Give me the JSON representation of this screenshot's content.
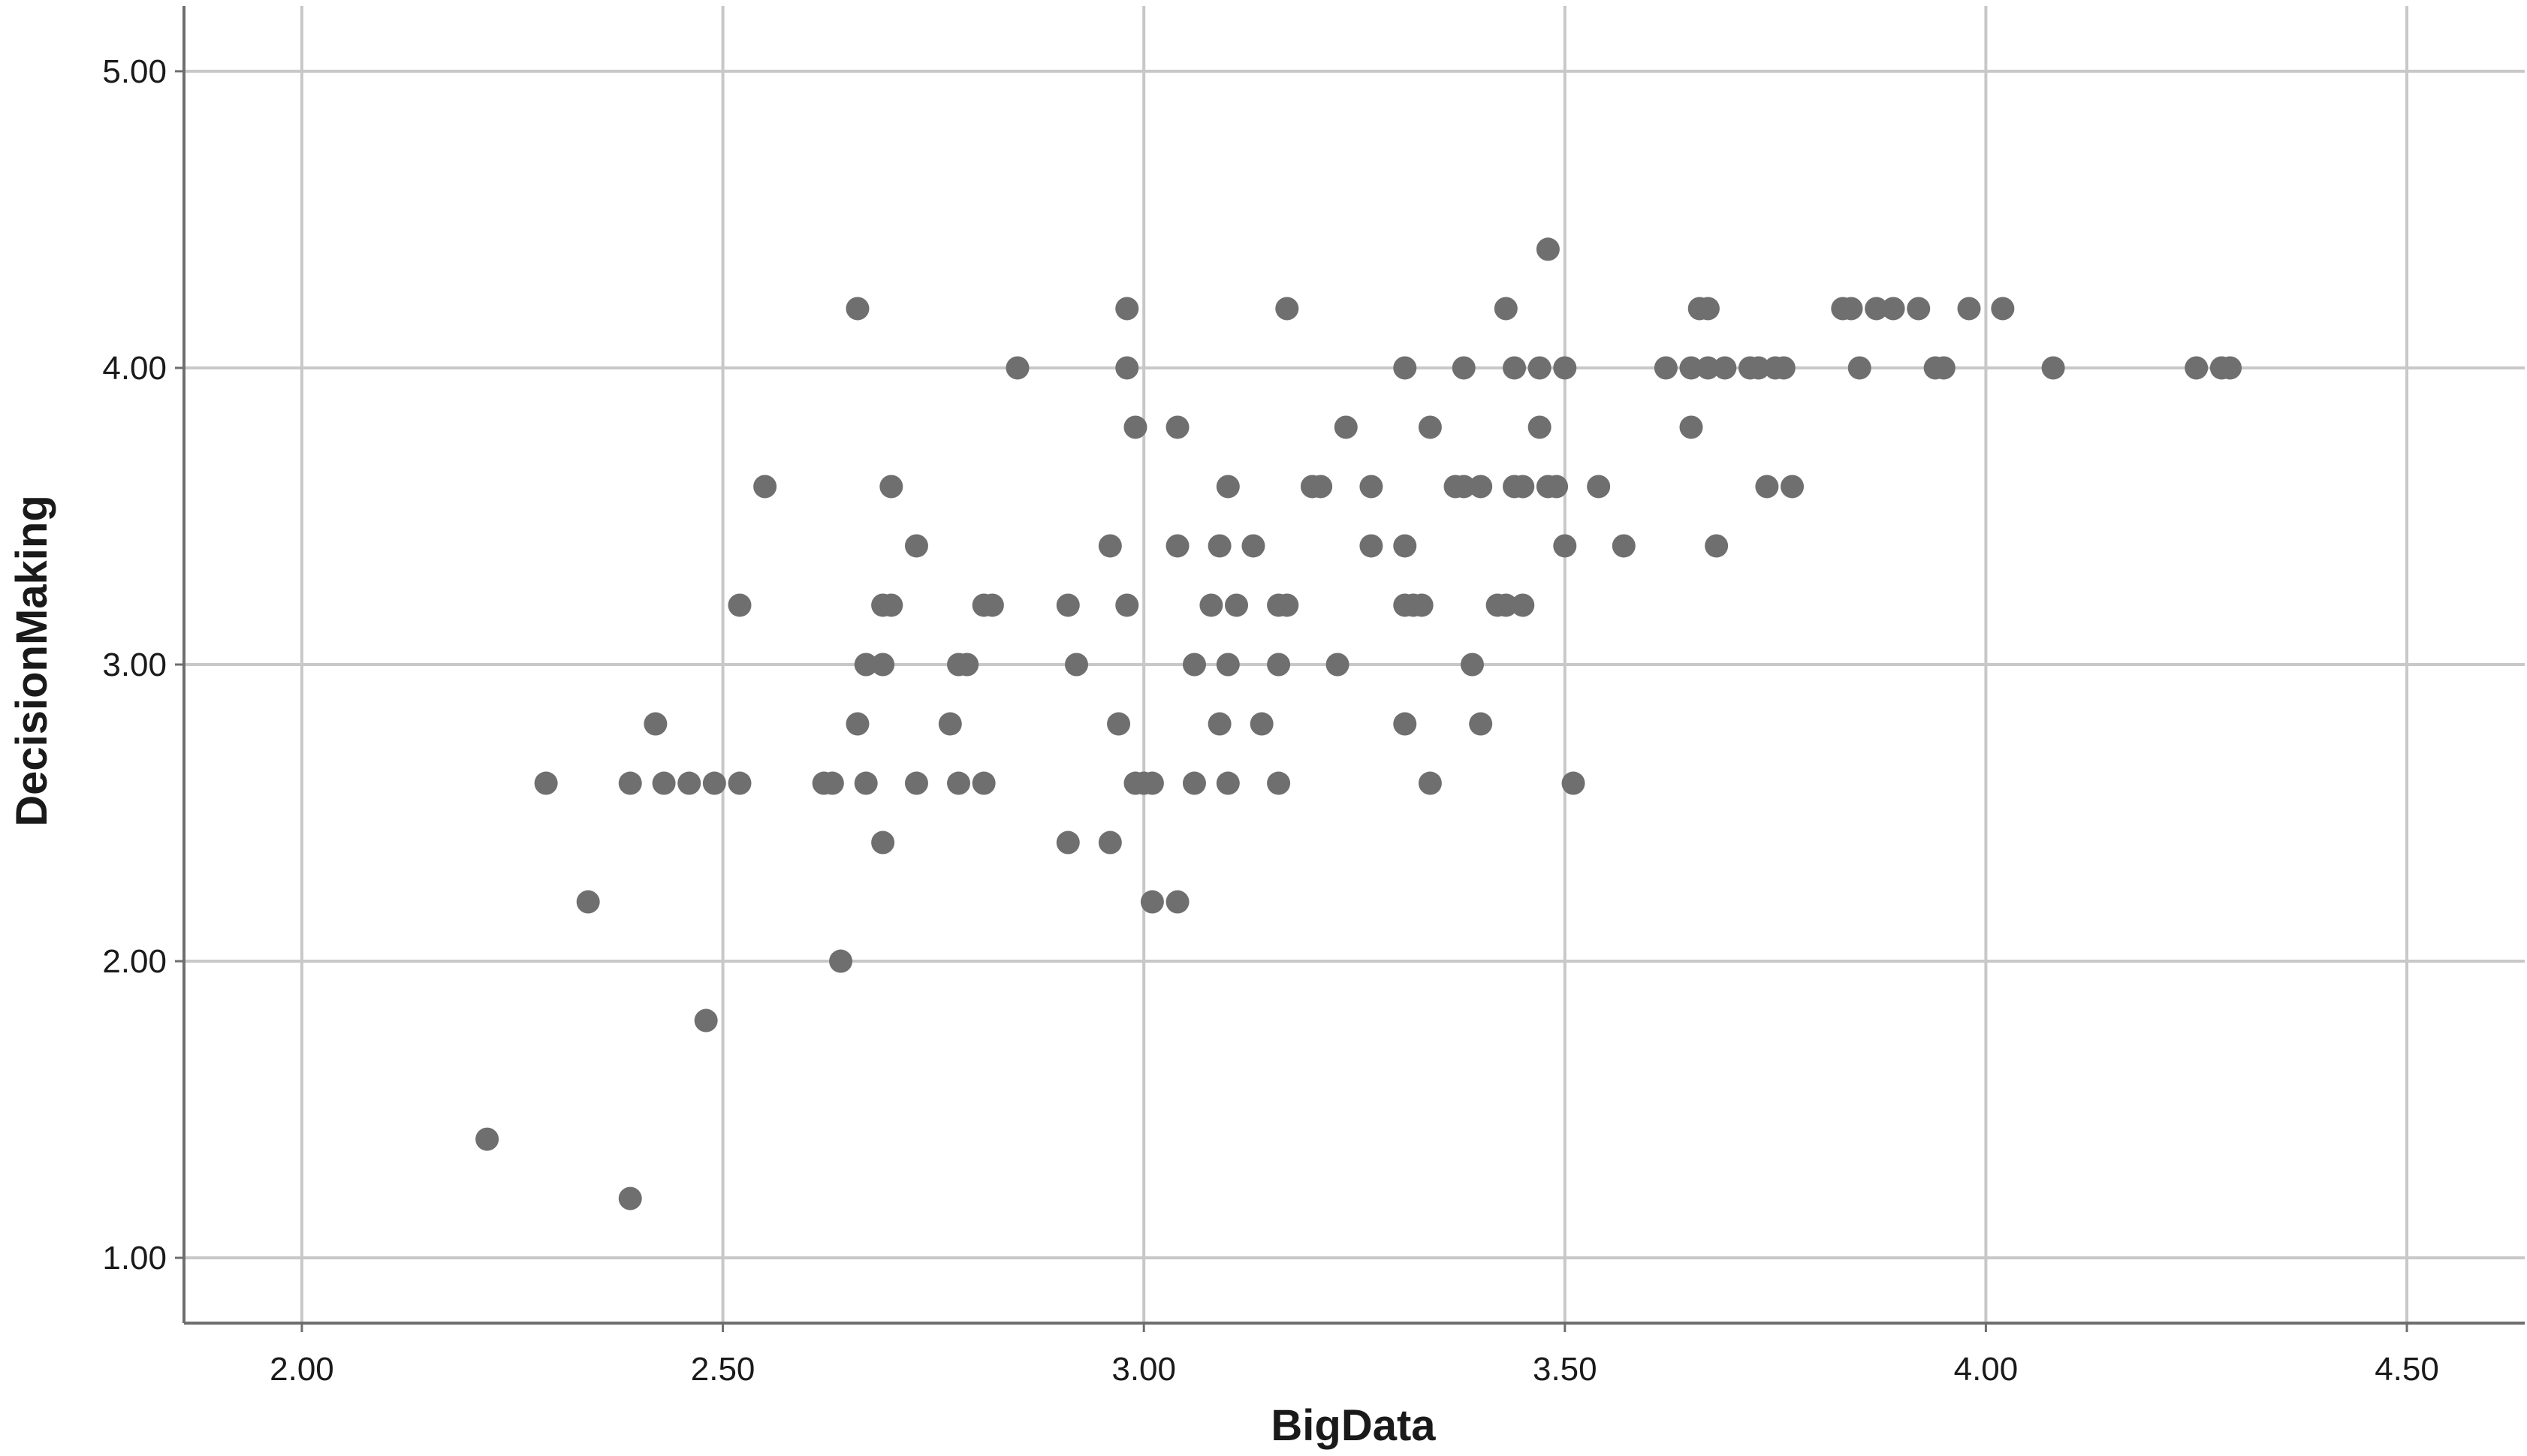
{
  "colors": {
    "background": "#ffffff",
    "grid": "#c8c8c8",
    "axis": "#6e6e6e",
    "points": "#6f6f6f",
    "text": "#1a1a1a"
  },
  "chart_data": {
    "type": "scatter",
    "title": "",
    "xlabel": "BigData",
    "ylabel": "DecisionMaking",
    "xlim": [
      1.86,
      4.64
    ],
    "ylim": [
      0.78,
      5.22
    ],
    "xticks": [
      2.0,
      2.5,
      3.0,
      3.5,
      4.0,
      4.5
    ],
    "xtick_labels": [
      "2.00",
      "2.50",
      "3.00",
      "3.50",
      "4.00",
      "4.50"
    ],
    "yticks": [
      1.0,
      2.0,
      3.0,
      4.0,
      5.0
    ],
    "ytick_labels": [
      "1.00",
      "2.00",
      "3.00",
      "4.00",
      "5.00"
    ],
    "grid": true,
    "legend": "none",
    "series": [
      {
        "points": [
          [
            2.22,
            1.4
          ],
          [
            2.39,
            1.2
          ],
          [
            2.29,
            2.6
          ],
          [
            2.34,
            2.2
          ],
          [
            2.39,
            2.6
          ],
          [
            2.42,
            2.8
          ],
          [
            2.43,
            2.6
          ],
          [
            2.46,
            2.6
          ],
          [
            2.48,
            1.8
          ],
          [
            2.49,
            2.6
          ],
          [
            2.52,
            2.6
          ],
          [
            2.52,
            3.2
          ],
          [
            2.55,
            3.6
          ],
          [
            2.62,
            2.6
          ],
          [
            2.63,
            2.6
          ],
          [
            2.64,
            2.0
          ],
          [
            2.66,
            2.8
          ],
          [
            2.67,
            3.0
          ],
          [
            2.67,
            2.6
          ],
          [
            2.66,
            4.2
          ],
          [
            2.69,
            3.2
          ],
          [
            2.7,
            3.2
          ],
          [
            2.69,
            3.0
          ],
          [
            2.69,
            2.4
          ],
          [
            2.7,
            3.6
          ],
          [
            2.73,
            3.4
          ],
          [
            2.73,
            2.6
          ],
          [
            2.77,
            2.8
          ],
          [
            2.78,
            3.0
          ],
          [
            2.79,
            3.0
          ],
          [
            2.78,
            2.6
          ],
          [
            2.81,
            2.6
          ],
          [
            2.81,
            3.2
          ],
          [
            2.82,
            3.2
          ],
          [
            2.85,
            4.0
          ],
          [
            2.91,
            3.2
          ],
          [
            2.91,
            2.4
          ],
          [
            2.92,
            3.0
          ],
          [
            2.96,
            2.4
          ],
          [
            2.96,
            3.4
          ],
          [
            2.97,
            2.8
          ],
          [
            2.98,
            4.2
          ],
          [
            2.98,
            4.0
          ],
          [
            2.99,
            3.8
          ],
          [
            2.98,
            3.2
          ],
          [
            2.99,
            2.6
          ],
          [
            3.0,
            2.6
          ],
          [
            3.01,
            2.6
          ],
          [
            3.01,
            2.2
          ],
          [
            3.04,
            3.8
          ],
          [
            3.04,
            3.4
          ],
          [
            3.04,
            2.2
          ],
          [
            3.06,
            3.0
          ],
          [
            3.06,
            2.6
          ],
          [
            3.08,
            3.2
          ],
          [
            3.09,
            3.4
          ],
          [
            3.09,
            2.8
          ],
          [
            3.1,
            3.6
          ],
          [
            3.11,
            3.2
          ],
          [
            3.1,
            3.0
          ],
          [
            3.1,
            2.6
          ],
          [
            3.13,
            3.4
          ],
          [
            3.14,
            2.8
          ],
          [
            3.16,
            3.2
          ],
          [
            3.16,
            3.0
          ],
          [
            3.16,
            2.6
          ],
          [
            3.17,
            3.2
          ],
          [
            3.17,
            4.2
          ],
          [
            3.2,
            3.6
          ],
          [
            3.21,
            3.6
          ],
          [
            3.23,
            3.0
          ],
          [
            3.24,
            3.8
          ],
          [
            3.27,
            3.4
          ],
          [
            3.27,
            3.6
          ],
          [
            3.31,
            4.0
          ],
          [
            3.31,
            3.2
          ],
          [
            3.31,
            3.4
          ],
          [
            3.31,
            2.8
          ],
          [
            3.32,
            3.2
          ],
          [
            3.33,
            3.2
          ],
          [
            3.34,
            3.8
          ],
          [
            3.34,
            2.6
          ],
          [
            3.37,
            3.6
          ],
          [
            3.38,
            4.0
          ],
          [
            3.38,
            3.6
          ],
          [
            3.39,
            3.0
          ],
          [
            3.4,
            3.6
          ],
          [
            3.4,
            2.8
          ],
          [
            3.42,
            3.2
          ],
          [
            3.43,
            3.2
          ],
          [
            3.43,
            4.2
          ],
          [
            3.44,
            4.0
          ],
          [
            3.44,
            3.6
          ],
          [
            3.45,
            3.6
          ],
          [
            3.45,
            3.2
          ],
          [
            3.47,
            3.8
          ],
          [
            3.47,
            4.0
          ],
          [
            3.48,
            3.6
          ],
          [
            3.48,
            4.4
          ],
          [
            3.49,
            3.6
          ],
          [
            3.5,
            4.0
          ],
          [
            3.5,
            3.4
          ],
          [
            3.51,
            2.6
          ],
          [
            3.54,
            3.6
          ],
          [
            3.57,
            3.4
          ],
          [
            3.62,
            4.0
          ],
          [
            3.65,
            3.8
          ],
          [
            3.65,
            4.0
          ],
          [
            3.66,
            4.2
          ],
          [
            3.67,
            4.2
          ],
          [
            3.67,
            4.0
          ],
          [
            3.68,
            3.4
          ],
          [
            3.69,
            4.0
          ],
          [
            3.72,
            4.0
          ],
          [
            3.73,
            4.0
          ],
          [
            3.74,
            3.6
          ],
          [
            3.75,
            4.0
          ],
          [
            3.76,
            4.0
          ],
          [
            3.77,
            3.6
          ],
          [
            3.83,
            4.2
          ],
          [
            3.84,
            4.2
          ],
          [
            3.85,
            4.0
          ],
          [
            3.87,
            4.2
          ],
          [
            3.89,
            4.2
          ],
          [
            3.92,
            4.2
          ],
          [
            3.94,
            4.0
          ],
          [
            3.95,
            4.0
          ],
          [
            3.98,
            4.2
          ],
          [
            4.02,
            4.2
          ],
          [
            4.08,
            4.0
          ],
          [
            4.25,
            4.0
          ],
          [
            4.28,
            4.0
          ],
          [
            4.29,
            4.0
          ]
        ]
      }
    ]
  }
}
